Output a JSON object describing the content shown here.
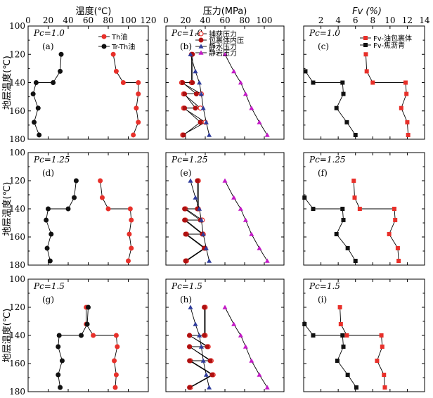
{
  "chart_data": [
    {
      "panel": "(a)",
      "pc": "Pc=1.0",
      "type": "line",
      "xlabel": "温度(℃)",
      "ylabel": "地层温度(℃)",
      "xlim": [
        0,
        120
      ],
      "ylim": [
        100,
        180
      ],
      "series": [
        {
          "name": "Th油",
          "color": "#e8302a",
          "marker": "circle",
          "x": [
            85,
            88,
            95,
            110,
            110,
            108,
            110,
            105
          ],
          "y": [
            120,
            132,
            140,
            140,
            148,
            158,
            168,
            177
          ]
        },
        {
          "name": "Tr-Th油",
          "color": "#111111",
          "marker": "circle",
          "x": [
            33,
            32,
            25,
            8,
            5,
            10,
            6,
            11
          ],
          "y": [
            120,
            132,
            140,
            140,
            148,
            158,
            168,
            177
          ]
        }
      ]
    },
    {
      "panel": "(b)",
      "pc": "Pc=1.0",
      "type": "line",
      "xlabel": "压力(MPa)",
      "xlim": [
        0,
        120
      ],
      "ylim": [
        100,
        180
      ],
      "series": [
        {
          "name": "捕获压力",
          "color": "#e8302a",
          "marker": "circle-open",
          "x": [
            26,
            26,
            16,
            36,
            18,
            35,
            18,
            40,
            17
          ],
          "y": [
            120,
            140,
            140,
            148,
            148,
            158,
            158,
            168,
            177
          ]
        },
        {
          "name": "包裹体内压",
          "color": "#b01010",
          "marker": "circle",
          "x": [
            27,
            27,
            17,
            31,
            19,
            30,
            19,
            35,
            18
          ],
          "y": [
            120,
            140,
            140,
            148,
            148,
            158,
            158,
            168,
            177
          ]
        },
        {
          "name": "静水压力",
          "color": "#2f3c9c",
          "marker": "triangle",
          "x": [
            25,
            30,
            34,
            36,
            38,
            41,
            44
          ],
          "y": [
            120,
            132,
            140,
            148,
            158,
            168,
            177
          ]
        },
        {
          "name": "静岩压力",
          "color": "#c41ac7",
          "marker": "triangle",
          "x": [
            60,
            69,
            76,
            81,
            87,
            95,
            103
          ],
          "y": [
            120,
            132,
            140,
            148,
            158,
            168,
            177
          ]
        }
      ]
    },
    {
      "panel": "(c)",
      "pc": "Pc=1.0",
      "type": "line",
      "xlabel": "Fv (%)",
      "xlim": [
        0,
        14
      ],
      "ylim": [
        100,
        180
      ],
      "series": [
        {
          "name": "Fv-油包裹体",
          "color": "#e8302a",
          "marker": "square",
          "x": [
            7.2,
            7.3,
            8,
            11.8,
            11.9,
            11.3,
            12,
            12.1
          ],
          "y": [
            120,
            132,
            140,
            140,
            148,
            158,
            168,
            177
          ]
        },
        {
          "name": "Fv-焦沥青",
          "color": "#111111",
          "marker": "square",
          "x": [
            0.2,
            1.1,
            4.5,
            4.6,
            3.8,
            5,
            6
          ],
          "y": [
            132,
            140,
            140,
            148,
            158,
            168,
            177
          ]
        }
      ]
    },
    {
      "panel": "(d)",
      "pc": "Pc=1.25",
      "type": "line",
      "xlabel": "温度(℃)",
      "ylabel": "地层温度(℃)",
      "xlim": [
        0,
        120
      ],
      "ylim": [
        100,
        180
      ],
      "series": [
        {
          "name": "Th油",
          "color": "#e8302a",
          "marker": "circle",
          "x": [
            72,
            74,
            80,
            102,
            103,
            101,
            103,
            100
          ],
          "y": [
            120,
            132,
            140,
            140,
            148,
            158,
            168,
            177
          ]
        },
        {
          "name": "Tr-Th油",
          "color": "#111111",
          "marker": "circle",
          "x": [
            48,
            46,
            40,
            20,
            18,
            23,
            19,
            22
          ],
          "y": [
            120,
            132,
            140,
            140,
            148,
            158,
            168,
            177
          ]
        }
      ]
    },
    {
      "panel": "(e)",
      "pc": "Pc=1.25",
      "type": "line",
      "xlabel": "压力(MPa)",
      "xlim": [
        0,
        120
      ],
      "ylim": [
        100,
        180
      ],
      "series": [
        {
          "name": "捕获压力",
          "color": "#e8302a",
          "marker": "circle-open",
          "x": [
            33,
            33,
            20,
            37,
            20,
            38,
            21,
            40,
            21
          ],
          "y": [
            120,
            140,
            140,
            148,
            148,
            158,
            158,
            168,
            177
          ]
        },
        {
          "name": "包裹体内压",
          "color": "#b01010",
          "marker": "circle",
          "x": [
            32,
            32,
            19,
            35,
            19,
            37,
            20,
            39,
            20
          ],
          "y": [
            120,
            140,
            140,
            148,
            148,
            158,
            158,
            168,
            177
          ]
        },
        {
          "name": "静水压力",
          "color": "#2f3c9c",
          "marker": "triangle",
          "x": [
            25,
            30,
            34,
            36,
            38,
            41,
            44
          ],
          "y": [
            120,
            132,
            140,
            148,
            158,
            168,
            177
          ]
        },
        {
          "name": "静岩压力",
          "color": "#c41ac7",
          "marker": "triangle",
          "x": [
            60,
            69,
            76,
            81,
            87,
            95,
            103
          ],
          "y": [
            120,
            132,
            140,
            148,
            158,
            168,
            177
          ]
        }
      ]
    },
    {
      "panel": "(f)",
      "pc": "Pc=1.25",
      "type": "line",
      "xlabel": "Fv (%)",
      "xlim": [
        0,
        14
      ],
      "ylim": [
        100,
        180
      ],
      "series": [
        {
          "name": "Fv-油包裹体",
          "color": "#e8302a",
          "marker": "square",
          "x": [
            5.8,
            5.9,
            6.5,
            10.5,
            10.6,
            9.9,
            10.9,
            11
          ],
          "y": [
            120,
            132,
            140,
            140,
            148,
            158,
            168,
            177
          ]
        },
        {
          "name": "Fv-焦沥青",
          "color": "#111111",
          "marker": "square",
          "x": [
            0.1,
            1.1,
            4.5,
            4.6,
            3.8,
            5.1,
            6
          ],
          "y": [
            132,
            140,
            140,
            148,
            158,
            168,
            177
          ]
        }
      ]
    },
    {
      "panel": "(g)",
      "pc": "Pc=1.5",
      "type": "line",
      "xlabel": "温度(℃)",
      "ylabel": "地层温度(℃)",
      "xlim": [
        0,
        120
      ],
      "ylim": [
        100,
        180
      ],
      "series": [
        {
          "name": "Th油",
          "color": "#e8302a",
          "marker": "circle",
          "x": [
            58,
            58,
            65,
            88,
            89,
            86,
            88,
            87
          ],
          "y": [
            120,
            132,
            140,
            140,
            148,
            158,
            168,
            177
          ]
        },
        {
          "name": "Tr-Th油",
          "color": "#111111",
          "marker": "circle",
          "x": [
            60,
            59,
            53,
            31,
            30,
            34,
            30,
            32
          ],
          "y": [
            120,
            132,
            140,
            140,
            148,
            158,
            168,
            177
          ]
        }
      ]
    },
    {
      "panel": "(h)",
      "pc": "Pc=1.5",
      "type": "line",
      "xlabel": "压力(MPa)",
      "xlim": [
        0,
        120
      ],
      "ylim": [
        100,
        180
      ],
      "series": [
        {
          "name": "捕获压力",
          "color": "#e8302a",
          "marker": "circle-open",
          "x": [
            40,
            40,
            24,
            43,
            24,
            46,
            25,
            48,
            25
          ],
          "y": [
            120,
            140,
            140,
            148,
            148,
            158,
            158,
            168,
            177
          ]
        },
        {
          "name": "包裹体内压",
          "color": "#b01010",
          "marker": "circle",
          "x": [
            39,
            39,
            24,
            42,
            24,
            45,
            24,
            47,
            24
          ],
          "y": [
            120,
            140,
            140,
            148,
            148,
            158,
            158,
            168,
            177
          ]
        },
        {
          "name": "静水压力",
          "color": "#2f3c9c",
          "marker": "triangle",
          "x": [
            25,
            30,
            34,
            36,
            38,
            41,
            44
          ],
          "y": [
            120,
            132,
            140,
            148,
            158,
            168,
            177
          ]
        },
        {
          "name": "静岩压力",
          "color": "#c41ac7",
          "marker": "triangle",
          "x": [
            60,
            69,
            76,
            81,
            87,
            95,
            103
          ],
          "y": [
            120,
            132,
            140,
            148,
            158,
            168,
            177
          ]
        }
      ]
    },
    {
      "panel": "(i)",
      "pc": "Pc=1.5",
      "type": "line",
      "xlabel": "Fv (%)",
      "xlim": [
        0,
        14
      ],
      "ylim": [
        100,
        180
      ],
      "series": [
        {
          "name": "Fv-油包裹体",
          "color": "#e8302a",
          "marker": "square",
          "x": [
            4.2,
            4.3,
            5,
            9,
            9.1,
            8.5,
            9.3,
            9.4
          ],
          "y": [
            120,
            132,
            140,
            140,
            148,
            158,
            168,
            177
          ]
        },
        {
          "name": "Fv-焦沥青",
          "color": "#111111",
          "marker": "square",
          "x": [
            0.1,
            1.1,
            4.5,
            4.6,
            3.9,
            5.1,
            6.1
          ],
          "y": [
            132,
            140,
            140,
            148,
            158,
            168,
            177
          ]
        }
      ]
    }
  ],
  "axes": {
    "col_titles": [
      "温度(℃)",
      "压力(MPa)",
      "Fv (%)"
    ],
    "row_title": "地层温度(℃)",
    "x_ticks": [
      [
        0,
        20,
        40,
        60,
        80,
        100,
        120
      ],
      [
        0,
        20,
        40,
        60,
        80,
        100
      ],
      [
        2,
        4,
        6,
        8,
        10,
        12,
        14
      ]
    ],
    "y_ticks": [
      100,
      120,
      140,
      160,
      180
    ]
  },
  "legends": {
    "temp": [
      "Th油",
      "Tr-Th油"
    ],
    "pressure": [
      "捕获压力",
      "包裹体内压",
      "静水压力",
      "静岩压力"
    ],
    "fv": [
      "Fv-油包裹体",
      "Fv-焦沥青"
    ]
  }
}
